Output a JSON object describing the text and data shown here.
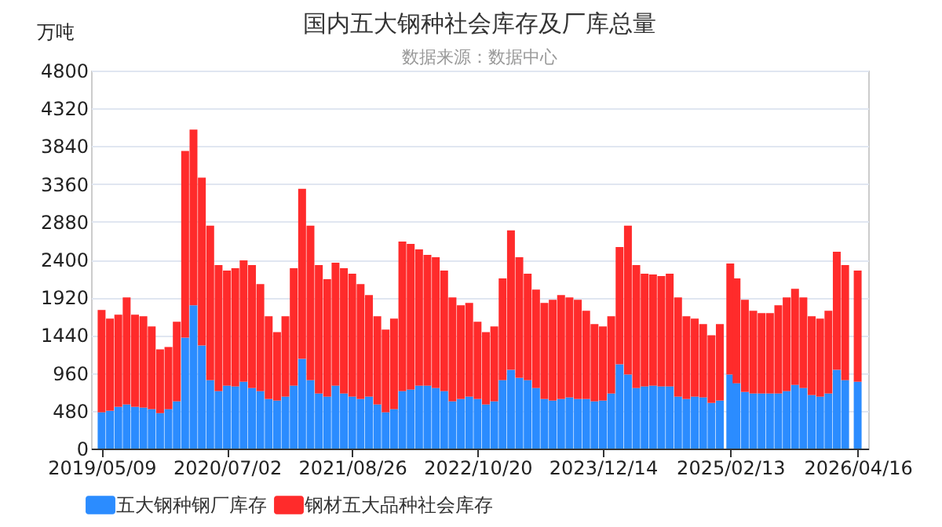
{
  "chart_data": {
    "type": "bar",
    "title": "国内五大钢种社会库存及厂库总量",
    "subtitle": "数据来源：数据中心",
    "ylabel": "万吨",
    "x": [
      "2019-05-09",
      "2019-06-06",
      "2019-07-04",
      "2019-08-01",
      "2019-08-29",
      "2019-09-26",
      "2019-10-24",
      "2019-11-21",
      "2019-12-19",
      "2020-01-16",
      "2020-02-13",
      "2020-03-12",
      "2020-04-09",
      "2020-05-07",
      "2020-06-04",
      "2020-07-02",
      "2020-07-30",
      "2020-08-27",
      "2020-09-24",
      "2020-10-22",
      "2020-11-19",
      "2020-12-17",
      "2021-01-14",
      "2021-02-11",
      "2021-03-11",
      "2021-04-08",
      "2021-05-06",
      "2021-06-03",
      "2021-07-01",
      "2021-07-29",
      "2021-08-26",
      "2021-09-23",
      "2021-10-21",
      "2021-11-18",
      "2021-12-16",
      "2022-01-13",
      "2022-02-10",
      "2022-03-10",
      "2022-04-07",
      "2022-05-05",
      "2022-06-02",
      "2022-06-30",
      "2022-07-28",
      "2022-08-25",
      "2022-09-22",
      "2022-10-20",
      "2022-11-17",
      "2022-12-15",
      "2023-01-12",
      "2023-02-09",
      "2023-03-09",
      "2023-04-06",
      "2023-05-04",
      "2023-06-01",
      "2023-06-29",
      "2023-07-27",
      "2023-08-24",
      "2023-09-21",
      "2023-10-19",
      "2023-11-16",
      "2023-12-14",
      "2024-01-11",
      "2024-02-08",
      "2024-03-07",
      "2024-04-04",
      "2024-05-02",
      "2024-05-30",
      "2024-06-27",
      "2024-07-25",
      "2024-08-22",
      "2024-09-19",
      "2024-10-17",
      "2024-11-14",
      "2024-12-12",
      "2025-01-09",
      "2025-02-13",
      "2025-03-06",
      "2025-04-03",
      "2025-05-01",
      "2025-05-29",
      "2025-06-26",
      "2025-07-24",
      "2025-08-21",
      "2025-09-18",
      "2025-10-16",
      "2025-11-13",
      "2025-12-11",
      "2026-01-08",
      "2026-02-05",
      "2026-03-05",
      "2026-04-16"
    ],
    "series": [
      {
        "name": "五大钢种钢厂库存",
        "color": "#2b8cff",
        "values": [
          460,
          480,
          530,
          560,
          530,
          520,
          500,
          450,
          500,
          600,
          1410,
          1820,
          1310,
          870,
          730,
          800,
          790,
          850,
          770,
          730,
          630,
          610,
          660,
          800,
          1140,
          870,
          700,
          660,
          800,
          700,
          660,
          630,
          660,
          560,
          460,
          500,
          730,
          750,
          800,
          800,
          770,
          730,
          600,
          630,
          660,
          630,
          560,
          600,
          870,
          1000,
          900,
          870,
          770,
          630,
          610,
          630,
          650,
          630,
          630,
          600,
          610,
          700,
          1070,
          940,
          770,
          790,
          800,
          790,
          790,
          660,
          630,
          660,
          650,
          580,
          610,
          940,
          830,
          720,
          700,
          700,
          700,
          700,
          730,
          810,
          770,
          680,
          660,
          700,
          1000,
          870,
          850
        ]
      },
      {
        "name": "钢材五大品种社会库存",
        "color": "#ff2b2b",
        "values": [
          1300,
          1170,
          1170,
          1360,
          1170,
          1160,
          1050,
          810,
          790,
          1010,
          2370,
          2230,
          2130,
          1960,
          1600,
          1460,
          1500,
          1540,
          1560,
          1360,
          1050,
          870,
          1020,
          1490,
          2160,
          1960,
          1630,
          1490,
          1560,
          1590,
          1560,
          1460,
          1290,
          1120,
          1050,
          1150,
          1900,
          1850,
          1730,
          1660,
          1660,
          1530,
          1320,
          1190,
          1190,
          980,
          920,
          950,
          1290,
          1770,
          1530,
          1350,
          1250,
          1220,
          1280,
          1320,
          1270,
          1260,
          1120,
          980,
          940,
          980,
          1490,
          1890,
          1560,
          1430,
          1410,
          1400,
          1430,
          1260,
          1050,
          990,
          930,
          860,
          970,
          1410,
          1330,
          1170,
          1050,
          1020,
          1020,
          1120,
          1190,
          1220,
          1150,
          1000,
          990,
          1050,
          1500,
          1460,
          1410
        ]
      }
    ],
    "stacked": true,
    "xlim": [
      "2019-04-30",
      "2026-04-25"
    ],
    "xticks": [
      {
        "value": "2019-05-09",
        "label": "2019/05/09"
      },
      {
        "value": "2020-07-02",
        "label": "2020/07/02"
      },
      {
        "value": "2021-08-26",
        "label": "2021/08/26"
      },
      {
        "value": "2022-10-20",
        "label": "2022/10/20"
      },
      {
        "value": "2023-12-14",
        "label": "2023/12/14"
      },
      {
        "value": "2025-02-13",
        "label": "2025/02/13"
      },
      {
        "value": "2026-04-16",
        "label": "2026/04/16"
      }
    ],
    "ylim": [
      0,
      4800
    ],
    "yticks": [
      0,
      480,
      960,
      1440,
      1920,
      2400,
      2880,
      3360,
      3840,
      4320,
      4800
    ],
    "grid": "y",
    "legend": "bottom"
  }
}
